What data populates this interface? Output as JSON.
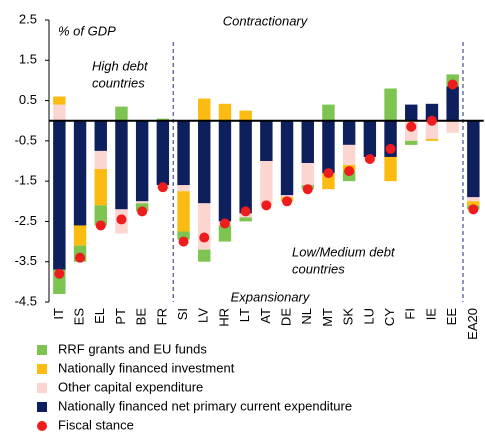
{
  "chart_data": {
    "type": "stacked_bar",
    "y_label": "% of GDP",
    "annotations": {
      "top": "Contractionary",
      "bottom": "Expansionary",
      "high_debt": [
        "High debt",
        "countries"
      ],
      "low_debt": [
        "Low/Medium debt",
        "countries"
      ]
    },
    "categories": [
      "IT",
      "ES",
      "EL",
      "PT",
      "BE",
      "FR",
      "SI",
      "LV",
      "HR",
      "LT",
      "AT",
      "DE",
      "NL",
      "MT",
      "SK",
      "LU",
      "CY",
      "FI",
      "IE",
      "EE",
      "EA20"
    ],
    "series": [
      {
        "name": "RRF grants and EU funds",
        "color": "#7dc450",
        "values": [
          -0.6,
          -0.4,
          -0.5,
          0.35,
          -0.2,
          0.05,
          -0.2,
          -0.3,
          -0.4,
          -0.1,
          0,
          0,
          -0.1,
          0.4,
          -0.25,
          0,
          0.8,
          -0.1,
          0,
          0.3,
          -0.1
        ]
      },
      {
        "name": "Nationally financed investment",
        "color": "#fbbb10",
        "values": [
          0.2,
          -0.5,
          -0.9,
          0,
          0,
          0,
          -1.0,
          0.55,
          0.42,
          0.25,
          0,
          -0.1,
          0,
          -0.4,
          -0.15,
          0,
          -0.6,
          0,
          -0.05,
          0,
          -0.1
        ]
      },
      {
        "name": "Other capital expenditure",
        "color": "#fbd6d0",
        "values": [
          0.4,
          0,
          -0.45,
          -0.6,
          -0.05,
          -0.1,
          -0.15,
          -1.15,
          -0.1,
          -0.1,
          -1.1,
          -0.05,
          -0.55,
          0,
          -0.5,
          -0.05,
          0,
          -0.5,
          -0.45,
          -0.3,
          -0.1
        ]
      },
      {
        "name": "Nationally financed net primary current expenditure",
        "color": "#0d1f5c",
        "values": [
          -3.7,
          -2.6,
          -0.75,
          -2.2,
          -2.0,
          -1.6,
          -1.6,
          -2.05,
          -2.5,
          -2.3,
          -1.0,
          -1.85,
          -1.05,
          -1.3,
          -0.6,
          -0.9,
          -0.9,
          0.4,
          0.42,
          0.85,
          -1.9
        ]
      }
    ],
    "stance": {
      "name": "Fiscal stance",
      "color": "#ee1c1c",
      "values": [
        -3.8,
        -3.4,
        -2.6,
        -2.45,
        -2.25,
        -1.65,
        -3.0,
        -2.9,
        -2.55,
        -2.25,
        -2.1,
        -2.0,
        -1.7,
        -1.3,
        -1.25,
        -0.95,
        -0.7,
        -0.15,
        0.0,
        0.9,
        -2.2
      ]
    },
    "ylim": [
      -4.5,
      2.5
    ],
    "yticks": [
      2.5,
      1.5,
      0.5,
      -0.5,
      -1.5,
      -2.5,
      -3.5,
      -4.5
    ]
  }
}
